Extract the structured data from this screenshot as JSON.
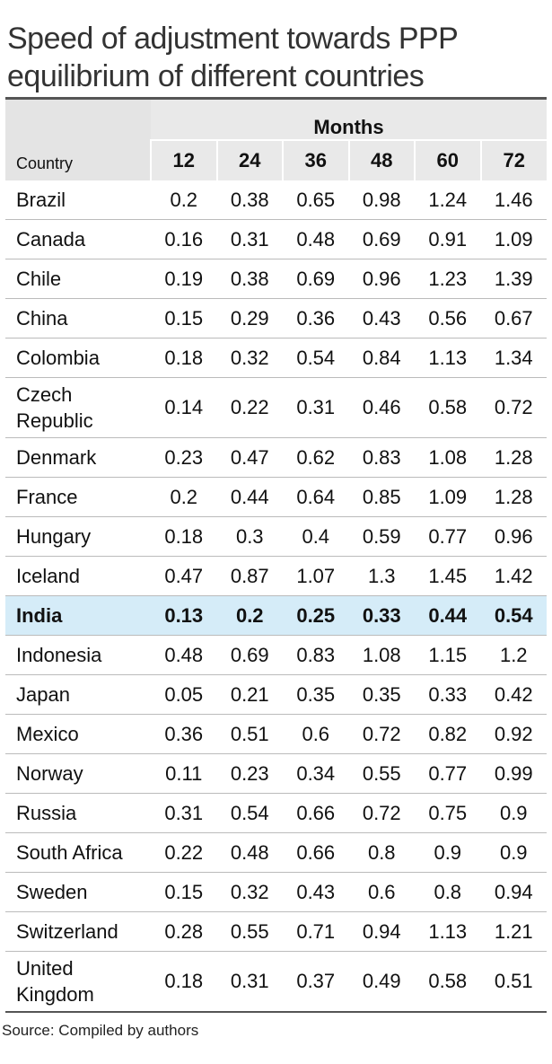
{
  "header": {
    "title": "Speed of adjustment towards PPP equilibrium of different countries"
  },
  "table": {
    "group_header": "Months",
    "country_header": "Country",
    "months": [
      12,
      24,
      36,
      48,
      60,
      72
    ],
    "rows": [
      [
        "Brazil",
        0.2,
        0.38,
        0.65,
        0.98,
        1.24,
        1.46
      ],
      [
        "Canada",
        0.16,
        0.31,
        0.48,
        0.69,
        0.91,
        1.09
      ],
      [
        "Chile",
        0.19,
        0.38,
        0.69,
        0.96,
        1.23,
        1.39
      ],
      [
        "China",
        0.15,
        0.29,
        0.36,
        0.43,
        0.56,
        0.67
      ],
      [
        "Colombia",
        0.18,
        0.32,
        0.54,
        0.84,
        1.13,
        1.34
      ],
      [
        "Czech Republic",
        0.14,
        0.22,
        0.31,
        0.46,
        0.58,
        0.72
      ],
      [
        "Denmark",
        0.23,
        0.47,
        0.62,
        0.83,
        1.08,
        1.28
      ],
      [
        "France",
        0.2,
        0.44,
        0.64,
        0.85,
        1.09,
        1.28
      ],
      [
        "Hungary",
        0.18,
        0.3,
        0.4,
        0.59,
        0.77,
        0.96
      ],
      [
        "Iceland",
        0.47,
        0.87,
        1.07,
        1.3,
        1.45,
        1.42
      ],
      [
        "India",
        0.13,
        0.2,
        0.25,
        0.33,
        0.44,
        0.54
      ],
      [
        "Indonesia",
        0.48,
        0.69,
        0.83,
        1.08,
        1.15,
        1.2
      ],
      [
        "Japan",
        0.05,
        0.21,
        0.35,
        0.35,
        0.33,
        0.42
      ],
      [
        "Mexico",
        0.36,
        0.51,
        0.6,
        0.72,
        0.82,
        0.92
      ],
      [
        "Norway",
        0.11,
        0.23,
        0.34,
        0.55,
        0.77,
        0.99
      ],
      [
        "Russia",
        0.31,
        0.54,
        0.66,
        0.72,
        0.75,
        0.9
      ],
      [
        "South Africa",
        0.22,
        0.48,
        0.66,
        0.8,
        0.9,
        0.9
      ],
      [
        "Sweden",
        0.15,
        0.32,
        0.43,
        0.6,
        0.8,
        0.94
      ],
      [
        "Switzerland",
        0.28,
        0.55,
        0.71,
        0.94,
        1.13,
        1.21
      ],
      [
        "United Kingdom",
        0.18,
        0.31,
        0.37,
        0.49,
        0.58,
        0.51
      ]
    ]
  },
  "footer": {
    "source": "Source: Compiled by authors"
  }
}
